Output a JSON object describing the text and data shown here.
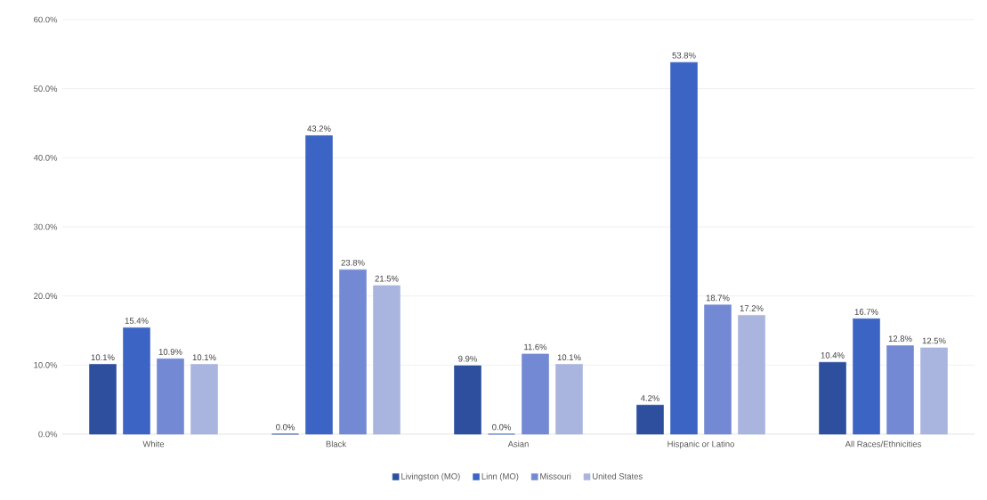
{
  "chart_data": {
    "type": "bar",
    "categories": [
      "White",
      "Black",
      "Asian",
      "Hispanic or Latino",
      "All Races/Ethnicities"
    ],
    "series": [
      {
        "name": "Livingston (MO)",
        "color": "#2e4f9e",
        "values": [
          10.1,
          0.0,
          9.9,
          4.2,
          10.4
        ],
        "value_labels": [
          "10.1%",
          "0.0%",
          "9.9%",
          "4.2%",
          "10.4%"
        ]
      },
      {
        "name": "Linn (MO)",
        "color": "#3c64c4",
        "values": [
          15.4,
          43.2,
          0.0,
          53.8,
          16.7
        ],
        "value_labels": [
          "15.4%",
          "43.2%",
          "0.0%",
          "53.8%",
          "16.7%"
        ]
      },
      {
        "name": "Missouri",
        "color": "#7389d4",
        "values": [
          10.9,
          23.8,
          11.6,
          18.7,
          12.8
        ],
        "value_labels": [
          "10.9%",
          "23.8%",
          "11.6%",
          "18.7%",
          "12.8%"
        ]
      },
      {
        "name": "United States",
        "color": "#aab5df",
        "values": [
          10.1,
          21.5,
          10.1,
          17.2,
          12.5
        ],
        "value_labels": [
          "10.1%",
          "21.5%",
          "10.1%",
          "17.2%",
          "12.5%"
        ]
      }
    ],
    "ylim": [
      0,
      60
    ],
    "yticks": [
      {
        "value": 0,
        "label": "0.0%"
      },
      {
        "value": 10,
        "label": "10.0%"
      },
      {
        "value": 20,
        "label": "20.0%"
      },
      {
        "value": 30,
        "label": "30.0%"
      },
      {
        "value": 40,
        "label": "40.0%"
      },
      {
        "value": 50,
        "label": "50.0%"
      },
      {
        "value": 60,
        "label": "60.0%"
      }
    ],
    "grid": "y",
    "legend": "bottom"
  }
}
